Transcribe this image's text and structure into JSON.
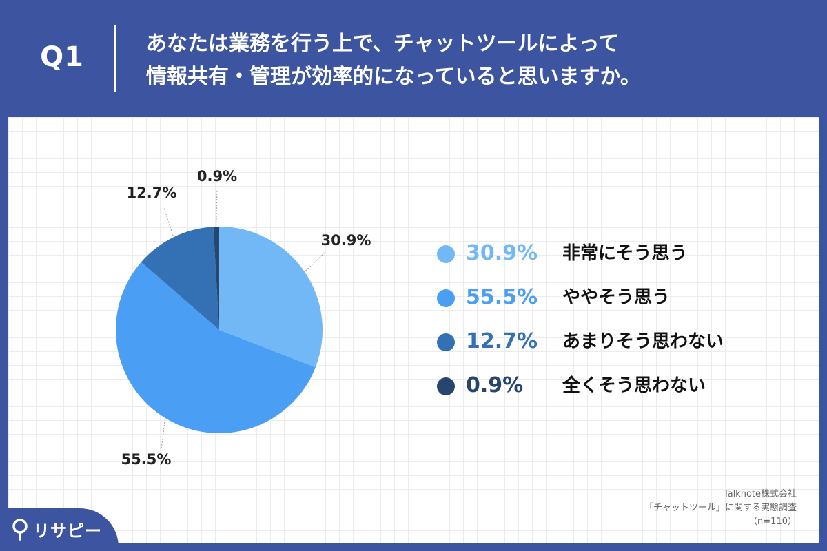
{
  "header": {
    "q_label": "Q1",
    "question_line1": "あなたは業務を行う上で、チャットツールによって",
    "question_line2": "情報共有・管理が効率的になっていると思いますか。"
  },
  "chart_data": {
    "type": "pie",
    "start_angle_deg": 0,
    "direction": "clockwise",
    "slices": [
      {
        "label": "非常にそう思う",
        "value": 30.9,
        "display": "30.9%",
        "color": "#72b8f6"
      },
      {
        "label": "ややそう思う",
        "value": 55.5,
        "display": "55.5%",
        "color": "#4a9ef4"
      },
      {
        "label": "あまりそう思わない",
        "value": 12.7,
        "display": "12.7%",
        "color": "#3470b4"
      },
      {
        "label": "全くそう思わない",
        "value": 0.9,
        "display": "0.9%",
        "color": "#27466e"
      }
    ],
    "legend_position": "right"
  },
  "source": {
    "line1": "Talknote株式会社",
    "line2": "「チャットツール」に関する実態調査",
    "line3": "（n=110）"
  },
  "logo": {
    "text": "リサピー"
  }
}
